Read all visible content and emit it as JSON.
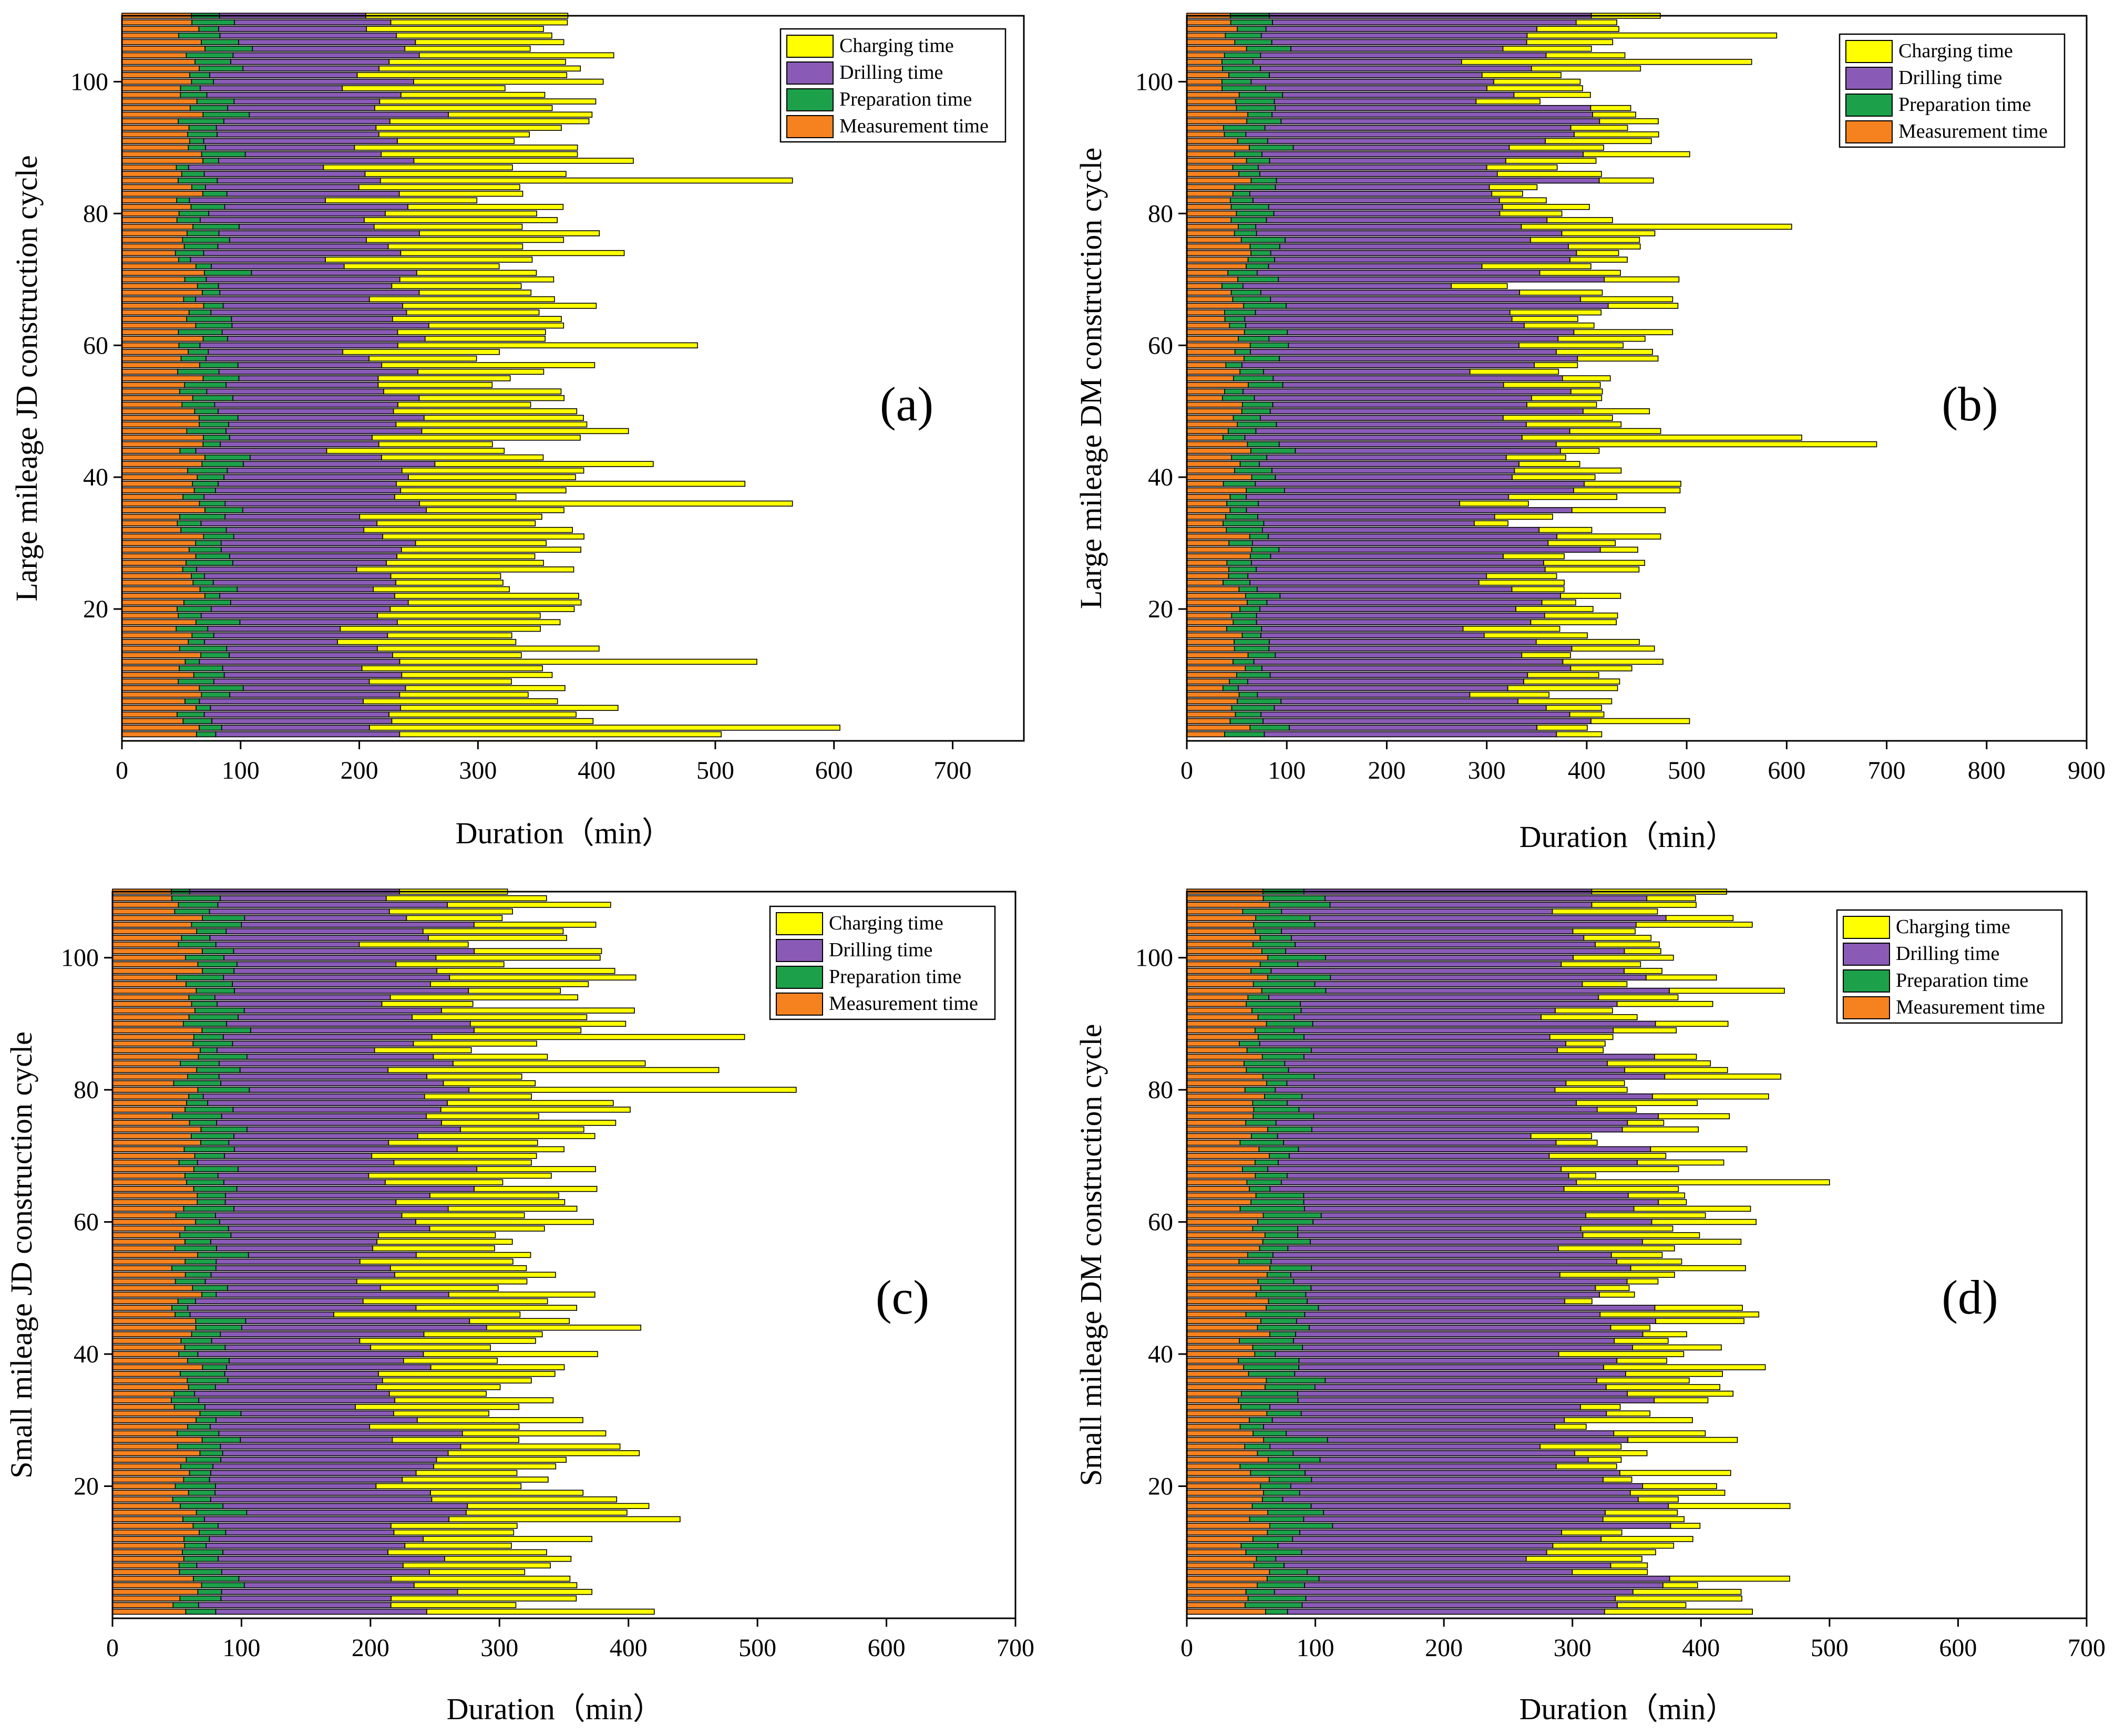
{
  "figure": {
    "legend_labels": [
      "Charging time",
      "Drilling time",
      "Preparation time",
      "Measurement time"
    ],
    "series_colors": {
      "Charging time": "#ffff00",
      "Drilling time": "#8a5bb6",
      "Preparation time": "#1ca14a",
      "Measurement time": "#f5821f"
    },
    "bar_stroke_color": "#000000"
  },
  "chart_data": [
    {
      "type": "bar",
      "orientation": "horizontal",
      "stacked": true,
      "panel": "(a)",
      "xlabel": "Duration（min）",
      "ylabel": "Large mileage JD construction cycle",
      "xlim": [
        0,
        760
      ],
      "xticks": [
        0,
        100,
        200,
        300,
        400,
        500,
        600,
        700
      ],
      "ylim": [
        0,
        110
      ],
      "yticks": [
        20,
        40,
        60,
        80,
        100
      ],
      "cycles": 110,
      "legend_position": "top-right",
      "series_summary": [
        {
          "name": "Measurement time",
          "typical_range": [
            45,
            70
          ]
        },
        {
          "name": "Preparation time",
          "typical_range": [
            10,
            40
          ]
        },
        {
          "name": "Drilling time",
          "typical_range": [
            110,
            170
          ]
        },
        {
          "name": "Charging time",
          "typical_range": [
            90,
            190
          ]
        }
      ],
      "totals": {
        "min": 320,
        "max": 605,
        "selected": {
          "1": 505,
          "2": 605,
          "12": 535,
          "36": 565,
          "39": 525,
          "60": 485,
          "85": 565
        }
      }
    },
    {
      "type": "bar",
      "orientation": "horizontal",
      "stacked": true,
      "panel": "(b)",
      "xlabel": "Duration（min）",
      "ylabel": "Large mileage DM construction cycle",
      "xlim": [
        0,
        900
      ],
      "xticks": [
        0,
        100,
        200,
        300,
        400,
        500,
        600,
        700,
        800,
        900
      ],
      "ylim": [
        0,
        110
      ],
      "yticks": [
        20,
        40,
        60,
        80,
        100
      ],
      "cycles": 110,
      "legend_position": "top-right",
      "series_summary": [
        {
          "name": "Measurement time",
          "typical_range": [
            35,
            65
          ]
        },
        {
          "name": "Preparation time",
          "typical_range": [
            15,
            45
          ]
        },
        {
          "name": "Drilling time",
          "typical_range": [
            200,
            330
          ]
        },
        {
          "name": "Charging time",
          "typical_range": [
            30,
            110
          ]
        }
      ],
      "totals": {
        "min": 290,
        "max": 690,
        "selected": {
          "1": 415,
          "45": 690,
          "46": 615,
          "78": 605,
          "107": 590,
          "103": 565
        }
      }
    },
    {
      "type": "bar",
      "orientation": "horizontal",
      "stacked": true,
      "panel": "(c)",
      "xlabel": "Duration（min）",
      "ylabel": "Small mileage JD construction cycle",
      "xlim": [
        0,
        700
      ],
      "xticks": [
        0,
        100,
        200,
        300,
        400,
        500,
        600,
        700
      ],
      "ylim": [
        0,
        110
      ],
      "yticks": [
        20,
        40,
        60,
        80,
        100
      ],
      "cycles": 110,
      "legend_position": "top-right",
      "series_summary": [
        {
          "name": "Measurement time",
          "typical_range": [
            45,
            70
          ]
        },
        {
          "name": "Preparation time",
          "typical_range": [
            10,
            40
          ]
        },
        {
          "name": "Drilling time",
          "typical_range": [
            110,
            190
          ]
        },
        {
          "name": "Charging time",
          "typical_range": [
            70,
            150
          ]
        }
      ],
      "totals": {
        "min": 300,
        "max": 530,
        "selected": {
          "1": 420,
          "15": 440,
          "80": 530,
          "88": 490,
          "83": 470
        }
      }
    },
    {
      "type": "bar",
      "orientation": "horizontal",
      "stacked": true,
      "panel": "(d)",
      "xlabel": "Duration（min）",
      "ylabel": "Small mileage DM construction cycle",
      "xlim": [
        0,
        700
      ],
      "xticks": [
        0,
        100,
        200,
        300,
        400,
        500,
        600,
        700
      ],
      "ylim": [
        0,
        110
      ],
      "yticks": [
        20,
        40,
        60,
        80,
        100
      ],
      "cycles": 110,
      "legend_position": "top-right",
      "series_summary": [
        {
          "name": "Measurement time",
          "typical_range": [
            40,
            65
          ]
        },
        {
          "name": "Preparation time",
          "typical_range": [
            15,
            50
          ]
        },
        {
          "name": "Drilling time",
          "typical_range": [
            190,
            280
          ]
        },
        {
          "name": "Charging time",
          "typical_range": [
            20,
            100
          ]
        }
      ],
      "totals": {
        "min": 310,
        "max": 500,
        "selected": {
          "1": 440,
          "38": 450,
          "46": 445,
          "66": 500,
          "110": 420
        }
      }
    }
  ]
}
